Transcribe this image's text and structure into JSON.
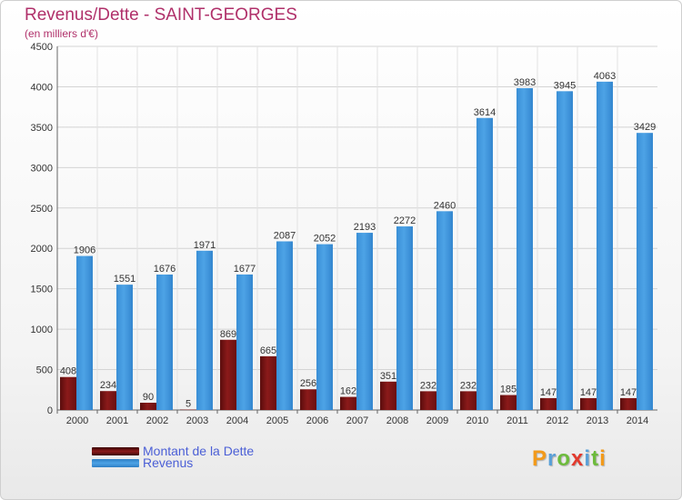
{
  "title": "Revenus/Dette - SAINT-GEORGES",
  "subtitle": "(en milliers d'€)",
  "colors": {
    "title": "#b0306a",
    "debt_bar": "#8b1a1a",
    "revenue_bar": "#4da3e6",
    "legend_text": "#4b5fd6",
    "grid": "#d4d4d4"
  },
  "chart_data": {
    "type": "bar",
    "title": "Revenus/Dette - SAINT-GEORGES",
    "subtitle": "(en milliers d'€)",
    "xlabel": "",
    "ylabel": "",
    "ylim": [
      0,
      4500
    ],
    "yticks": [
      0,
      500,
      1000,
      1500,
      2000,
      2500,
      3000,
      3500,
      4000,
      4500
    ],
    "grid": true,
    "legend_position": "bottom-left",
    "categories": [
      "2000",
      "2001",
      "2002",
      "2003",
      "2004",
      "2005",
      "2006",
      "2007",
      "2008",
      "2009",
      "2010",
      "2011",
      "2012",
      "2013",
      "2014"
    ],
    "series": [
      {
        "name": "Montant de la Dette",
        "values": [
          408,
          234,
          90,
          5,
          869,
          665,
          256,
          162,
          351,
          232,
          232,
          185,
          147,
          147,
          147
        ]
      },
      {
        "name": "Revenus",
        "values": [
          1906,
          1551,
          1676,
          1971,
          1677,
          2087,
          2052,
          2193,
          2272,
          2460,
          3614,
          3983,
          3945,
          4063,
          3429
        ]
      }
    ]
  },
  "logo": {
    "letters": [
      {
        "char": "P",
        "color": "#f29a1b"
      },
      {
        "char": "r",
        "color": "#5aa0d8"
      },
      {
        "char": "o",
        "color": "#6dbb3c"
      },
      {
        "char": "x",
        "color": "#e23a2e"
      },
      {
        "char": "i",
        "color": "#5aa0d8"
      },
      {
        "char": "t",
        "color": "#6dbb3c"
      },
      {
        "char": "i",
        "color": "#f29a1b"
      }
    ]
  }
}
